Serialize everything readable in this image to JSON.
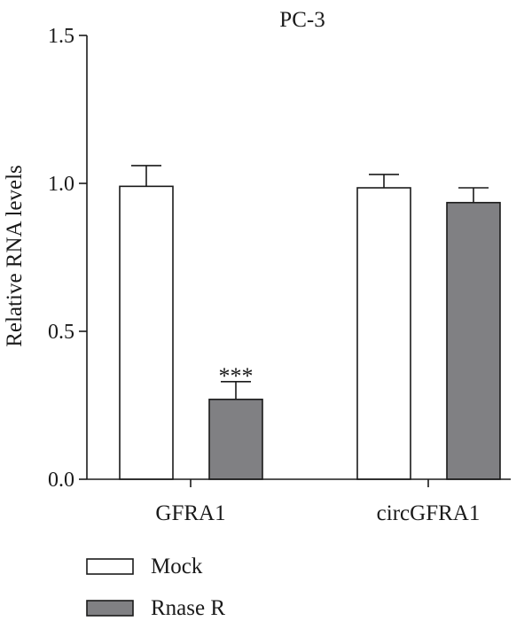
{
  "chart_data": {
    "type": "bar",
    "title": "PC-3",
    "ylabel": "Relative RNA levels",
    "xlabel": "",
    "ylim": [
      0,
      1.5
    ],
    "yticks": [
      "0.0",
      "0.5",
      "1.0",
      "1.5"
    ],
    "categories": [
      "GFRA1",
      "circGFRA1"
    ],
    "series": [
      {
        "name": "Mock",
        "values": [
          0.99,
          0.985
        ],
        "errors": [
          0.07,
          0.045
        ],
        "color": "#ffffff"
      },
      {
        "name": "Rnase R",
        "values": [
          0.27,
          0.935
        ],
        "errors": [
          0.06,
          0.05
        ],
        "color": "#808083"
      }
    ],
    "annotations": [
      {
        "category": "GFRA1",
        "series": "Rnase R",
        "text": "***"
      }
    ],
    "legend_position": "bottom-left",
    "grid": false
  }
}
